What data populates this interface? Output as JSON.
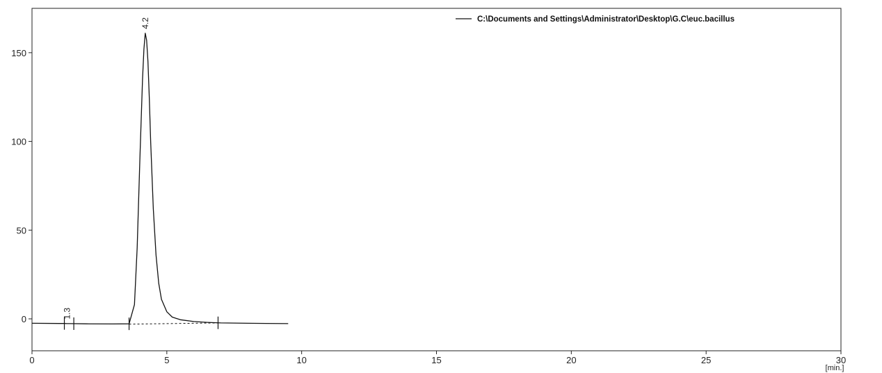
{
  "chart_data": {
    "type": "line",
    "x_unit_label": "[min.]",
    "xlim": [
      0,
      30
    ],
    "ylim": [
      -18,
      175
    ],
    "x_ticks": [
      0,
      5,
      10,
      15,
      20,
      25,
      30
    ],
    "y_ticks": [
      0,
      50,
      100,
      150
    ],
    "grid": false,
    "legend_position": "top-right",
    "series": [
      {
        "name": "C:\\Documents and Settings\\Administrator\\Desktop\\G.C\\euc.bacillus",
        "color": "#111111",
        "x": [
          0,
          1.0,
          1.2,
          1.3,
          1.4,
          2.0,
          3.0,
          3.6,
          3.8,
          3.9,
          4.0,
          4.1,
          4.15,
          4.2,
          4.25,
          4.3,
          4.35,
          4.4,
          4.5,
          4.6,
          4.7,
          4.8,
          5.0,
          5.2,
          5.5,
          6.0,
          6.5,
          7.0,
          8.0,
          9.5
        ],
        "y": [
          -2.5,
          -2.6,
          -2.6,
          -2.7,
          -2.7,
          -2.8,
          -2.9,
          -2.8,
          8,
          40,
          90,
          135,
          152,
          161,
          157,
          145,
          125,
          100,
          62,
          36,
          20,
          11,
          4,
          1,
          -0.5,
          -1.5,
          -2,
          -2.3,
          -2.5,
          -2.7
        ]
      }
    ],
    "baseline": {
      "x": [
        3.6,
        6.9
      ],
      "y": [
        -3.0,
        -2.3
      ],
      "style": "dashed"
    },
    "integration_markers": [
      1.2,
      1.55,
      3.6,
      6.9
    ],
    "peak_labels": [
      {
        "x": 1.3,
        "y": -2.6,
        "text": "1.3"
      },
      {
        "x": 4.2,
        "y": 161,
        "text": "4.2"
      }
    ]
  }
}
